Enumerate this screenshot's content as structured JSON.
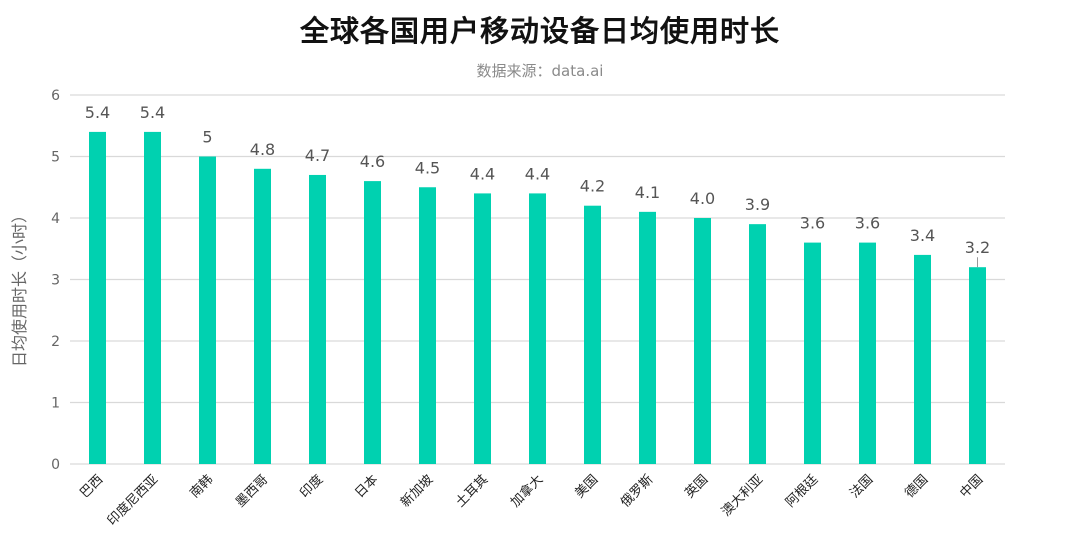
{
  "title": "全球各国用户移动设备日均使用时长",
  "subtitle": "数据来源：data.ai",
  "colors": {
    "bar": "#00D1B0",
    "grid": "#d9d9d9",
    "tick_text": "#666666",
    "label_text": "#555555",
    "category_text": "#222222"
  },
  "chart_data": {
    "type": "bar",
    "title": "全球各国用户移动设备日均使用时长",
    "subtitle": "数据来源：data.ai",
    "xlabel": "",
    "ylabel": "日均使用时长（小时）",
    "ylim": [
      0,
      6
    ],
    "yticks": [
      0,
      1,
      2,
      3,
      4,
      5,
      6
    ],
    "grid": true,
    "legend": null,
    "categories": [
      "巴西",
      "印度尼西亚",
      "南韩",
      "墨西哥",
      "印度",
      "日本",
      "新加坡",
      "土耳其",
      "加拿大",
      "美国",
      "俄罗斯",
      "英国",
      "澳大利亚",
      "阿根廷",
      "法国",
      "德国",
      "中国"
    ],
    "values": [
      5.4,
      5.4,
      5,
      4.8,
      4.7,
      4.6,
      4.5,
      4.4,
      4.4,
      4.2,
      4.1,
      4.0,
      3.9,
      3.6,
      3.6,
      3.4,
      3.2
    ],
    "data_labels": [
      "5.4",
      "5.4",
      "5",
      "4.8",
      "4.7",
      "4.6",
      "4.5",
      "4.4",
      "4.4",
      "4.2",
      "4.1",
      "4.0",
      "3.9",
      "3.6",
      "3.6",
      "3.4",
      "3.2"
    ]
  }
}
